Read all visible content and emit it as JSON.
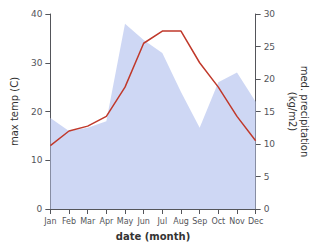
{
  "chart_data": {
    "type": "line",
    "categories": [
      "Jan",
      "Feb",
      "Mar",
      "Apr",
      "May",
      "Jun",
      "Jul",
      "Aug",
      "Sep",
      "Oct",
      "Nov",
      "Dec"
    ],
    "series": [
      {
        "type": "area",
        "color": "#bdc9f0",
        "axis": "y2",
        "values": [
          14,
          12,
          12.5,
          13.5,
          28.5,
          26,
          24,
          18,
          12.5,
          19.5,
          21,
          16.5
        ]
      },
      {
        "type": "line",
        "color": "#c0392b",
        "values": [
          13,
          16,
          17,
          19,
          25,
          34,
          36.5,
          36.5,
          30,
          25,
          19,
          14
        ]
      }
    ],
    "xlabel": "date (month)",
    "ylabel": "max temp (C)",
    "y2label": "med. precipitation\n(kg/m2)",
    "ylim": [
      0,
      40
    ],
    "yticks": [
      0,
      10,
      20,
      30,
      40
    ],
    "y2lim": [
      0,
      30
    ],
    "y2ticks": [
      0,
      5,
      10,
      15,
      20,
      25,
      30
    ],
    "grid": false
  }
}
